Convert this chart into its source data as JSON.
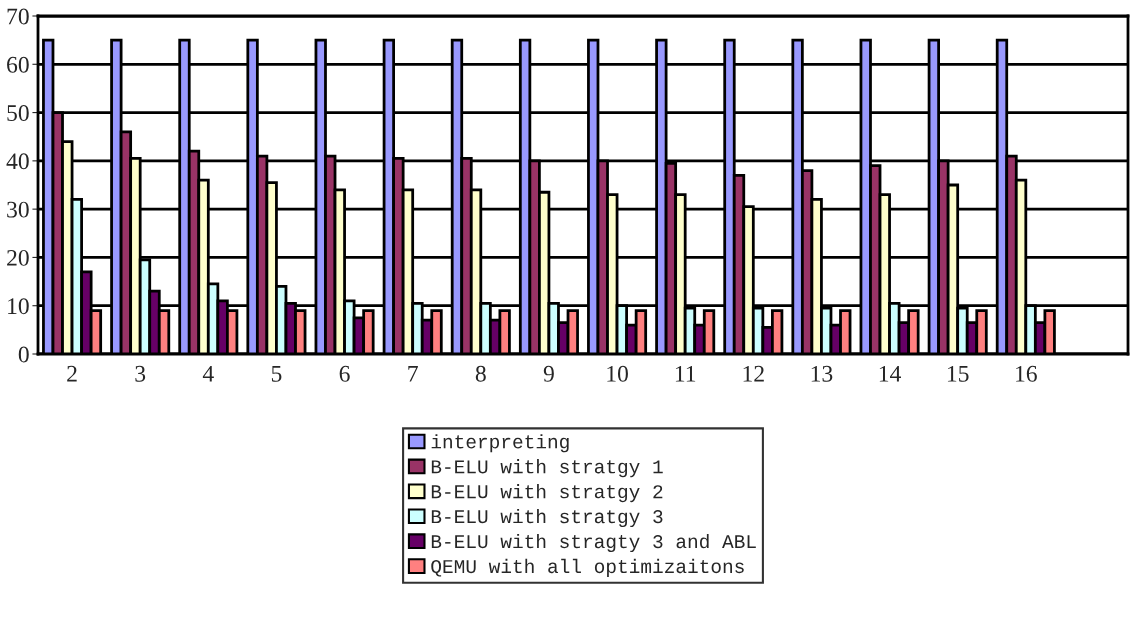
{
  "chart_data": {
    "type": "bar",
    "categories": [
      "2",
      "3",
      "4",
      "5",
      "6",
      "7",
      "8",
      "9",
      "10",
      "11",
      "12",
      "13",
      "14",
      "15",
      "16",
      null
    ],
    "series": [
      {
        "name": "interpreting",
        "color": "#9999ff",
        "values": [
          65,
          65,
          65,
          65,
          65,
          65,
          65,
          65,
          65,
          65,
          65,
          65,
          65,
          65,
          65,
          null
        ]
      },
      {
        "name": "B-ELU with stratgy 1",
        "color": "#993366",
        "values": [
          50,
          46,
          42,
          41,
          41,
          40.5,
          40.5,
          40,
          40,
          39.5,
          37,
          38,
          39,
          40,
          41,
          null
        ]
      },
      {
        "name": "B-ELU with stratgy 2",
        "color": "#ffffcc",
        "values": [
          44,
          40.5,
          36,
          35.5,
          34,
          34,
          34,
          33.5,
          33,
          33,
          30.5,
          32,
          33,
          35,
          36,
          null
        ]
      },
      {
        "name": "B-ELU with stratgy 3",
        "color": "#ccffff",
        "values": [
          32,
          19.5,
          14.5,
          14,
          11,
          10.5,
          10.5,
          10.5,
          10,
          9.5,
          9.5,
          9.5,
          10.5,
          9.5,
          10,
          null
        ]
      },
      {
        "name": "B-ELU with stragty 3 and ABL",
        "color": "#660066",
        "values": [
          17,
          13,
          11,
          10.5,
          7.5,
          7,
          7,
          6.5,
          6,
          6,
          5.5,
          6,
          6.5,
          6.5,
          6.5,
          null
        ]
      },
      {
        "name": "QEMU with all optimizaitons",
        "color": "#ff8080",
        "values": [
          9,
          9,
          9,
          9,
          9,
          9,
          9,
          9,
          9,
          9,
          9,
          9,
          9,
          9,
          9,
          null
        ]
      }
    ],
    "ylim": [
      0,
      70
    ],
    "yticks": [
      0,
      10,
      20,
      30,
      40,
      50,
      60,
      70
    ],
    "grid": "y",
    "legend": "bottom"
  }
}
